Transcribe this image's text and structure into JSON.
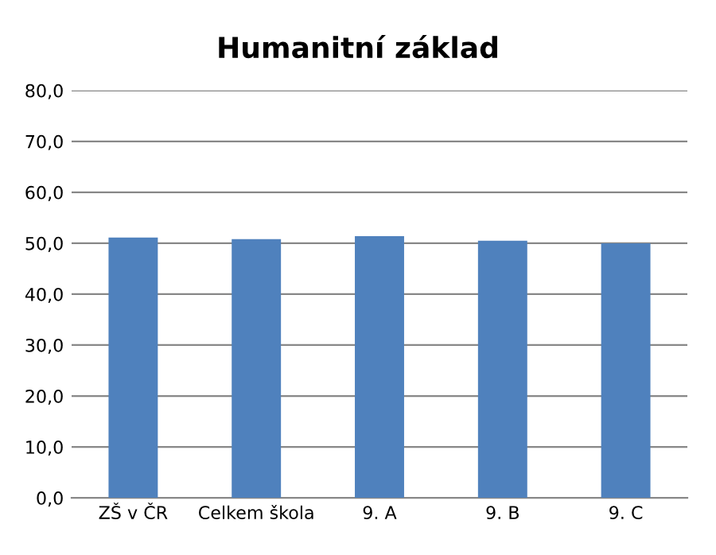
{
  "chart_data": {
    "type": "bar",
    "title": "Humanitní základ",
    "categories": [
      "ZŠ v ČR",
      "Celkem škola",
      "9. A",
      "9. B",
      "9. C"
    ],
    "values": [
      51.1,
      50.8,
      51.4,
      50.5,
      50.0
    ],
    "color": "#4f81bd",
    "ylim": [
      0,
      80
    ],
    "yticks": [
      {
        "value": 0,
        "label": "0,0"
      },
      {
        "value": 10,
        "label": "10,0"
      },
      {
        "value": 20,
        "label": "20,0"
      },
      {
        "value": 30,
        "label": "30,0"
      },
      {
        "value": 40,
        "label": "40,0"
      },
      {
        "value": 50,
        "label": "50,0"
      },
      {
        "value": 60,
        "label": "60,0"
      },
      {
        "value": 70,
        "label": "70,0"
      },
      {
        "value": 80,
        "label": "80,0"
      }
    ],
    "grid": "y",
    "legend": false
  }
}
